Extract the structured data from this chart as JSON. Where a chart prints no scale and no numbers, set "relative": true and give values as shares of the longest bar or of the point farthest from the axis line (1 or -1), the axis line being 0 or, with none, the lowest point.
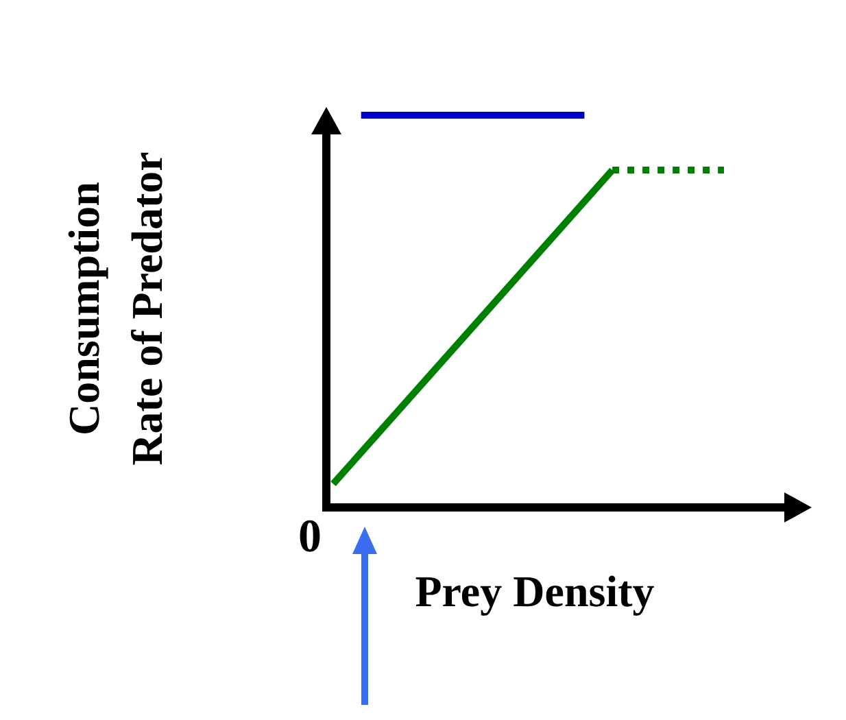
{
  "chart_data": {
    "type": "line",
    "relative": true,
    "xlabel": "Prey Density",
    "ylabel": "Consumption\nRate of Predator",
    "annotations": [
      "0"
    ],
    "categories": [
      null,
      null,
      null,
      null,
      null,
      null,
      null,
      null,
      null,
      null,
      null,
      null,
      null,
      null,
      null
    ],
    "marker": "none",
    "series": [
      {
        "color": "#008000",
        "line_style": "solid",
        "values": [
          0.06,
          0.14,
          0.22,
          0.3,
          0.38,
          0.46,
          0.54,
          0.62,
          0.7,
          0.78,
          0.86,
          null,
          null,
          null,
          null
        ]
      },
      {
        "color": "#008000",
        "line_style": "dotted",
        "values": [
          null,
          null,
          null,
          null,
          null,
          null,
          null,
          null,
          null,
          null,
          0.86,
          0.86,
          0.86,
          0.86,
          0.86
        ]
      },
      {
        "color": "#0000cc",
        "line_style": "solid",
        "values": [
          null,
          1,
          1,
          1,
          1,
          1,
          1,
          1,
          1,
          1,
          null,
          null,
          null,
          null,
          null
        ]
      }
    ]
  }
}
